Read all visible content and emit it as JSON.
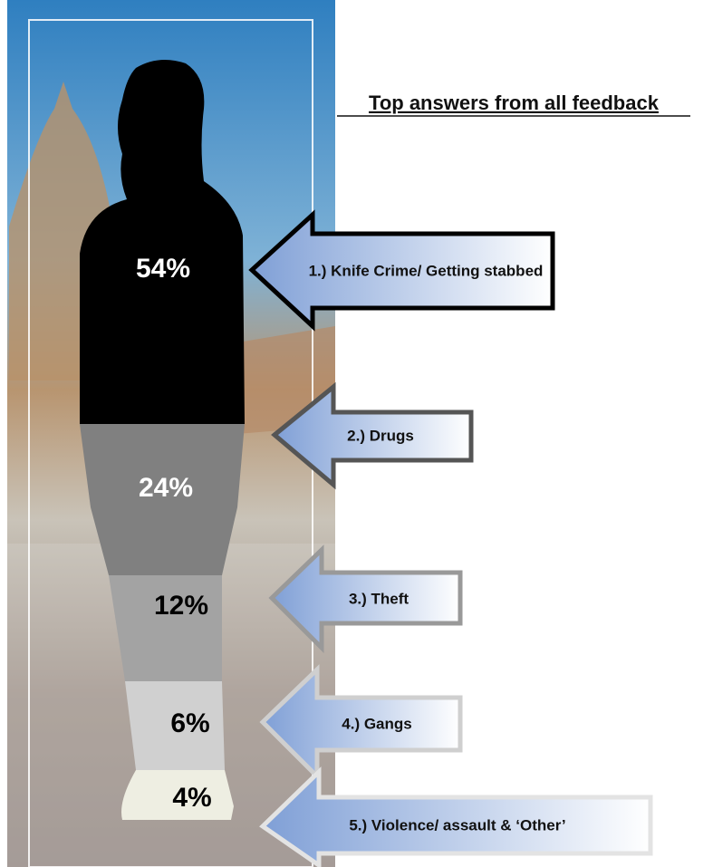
{
  "title": "Top answers from all feedback",
  "items": [
    {
      "label": "1.) Knife Crime/ Getting stabbed",
      "percent": "54%"
    },
    {
      "label": "2.) Drugs",
      "percent": "24%"
    },
    {
      "label": "3.) Theft",
      "percent": "12%"
    },
    {
      "label": "4.) Gangs",
      "percent": "6%"
    },
    {
      "label": "5.) Violence/ assault & ‘Other’",
      "percent": "4%"
    }
  ]
}
